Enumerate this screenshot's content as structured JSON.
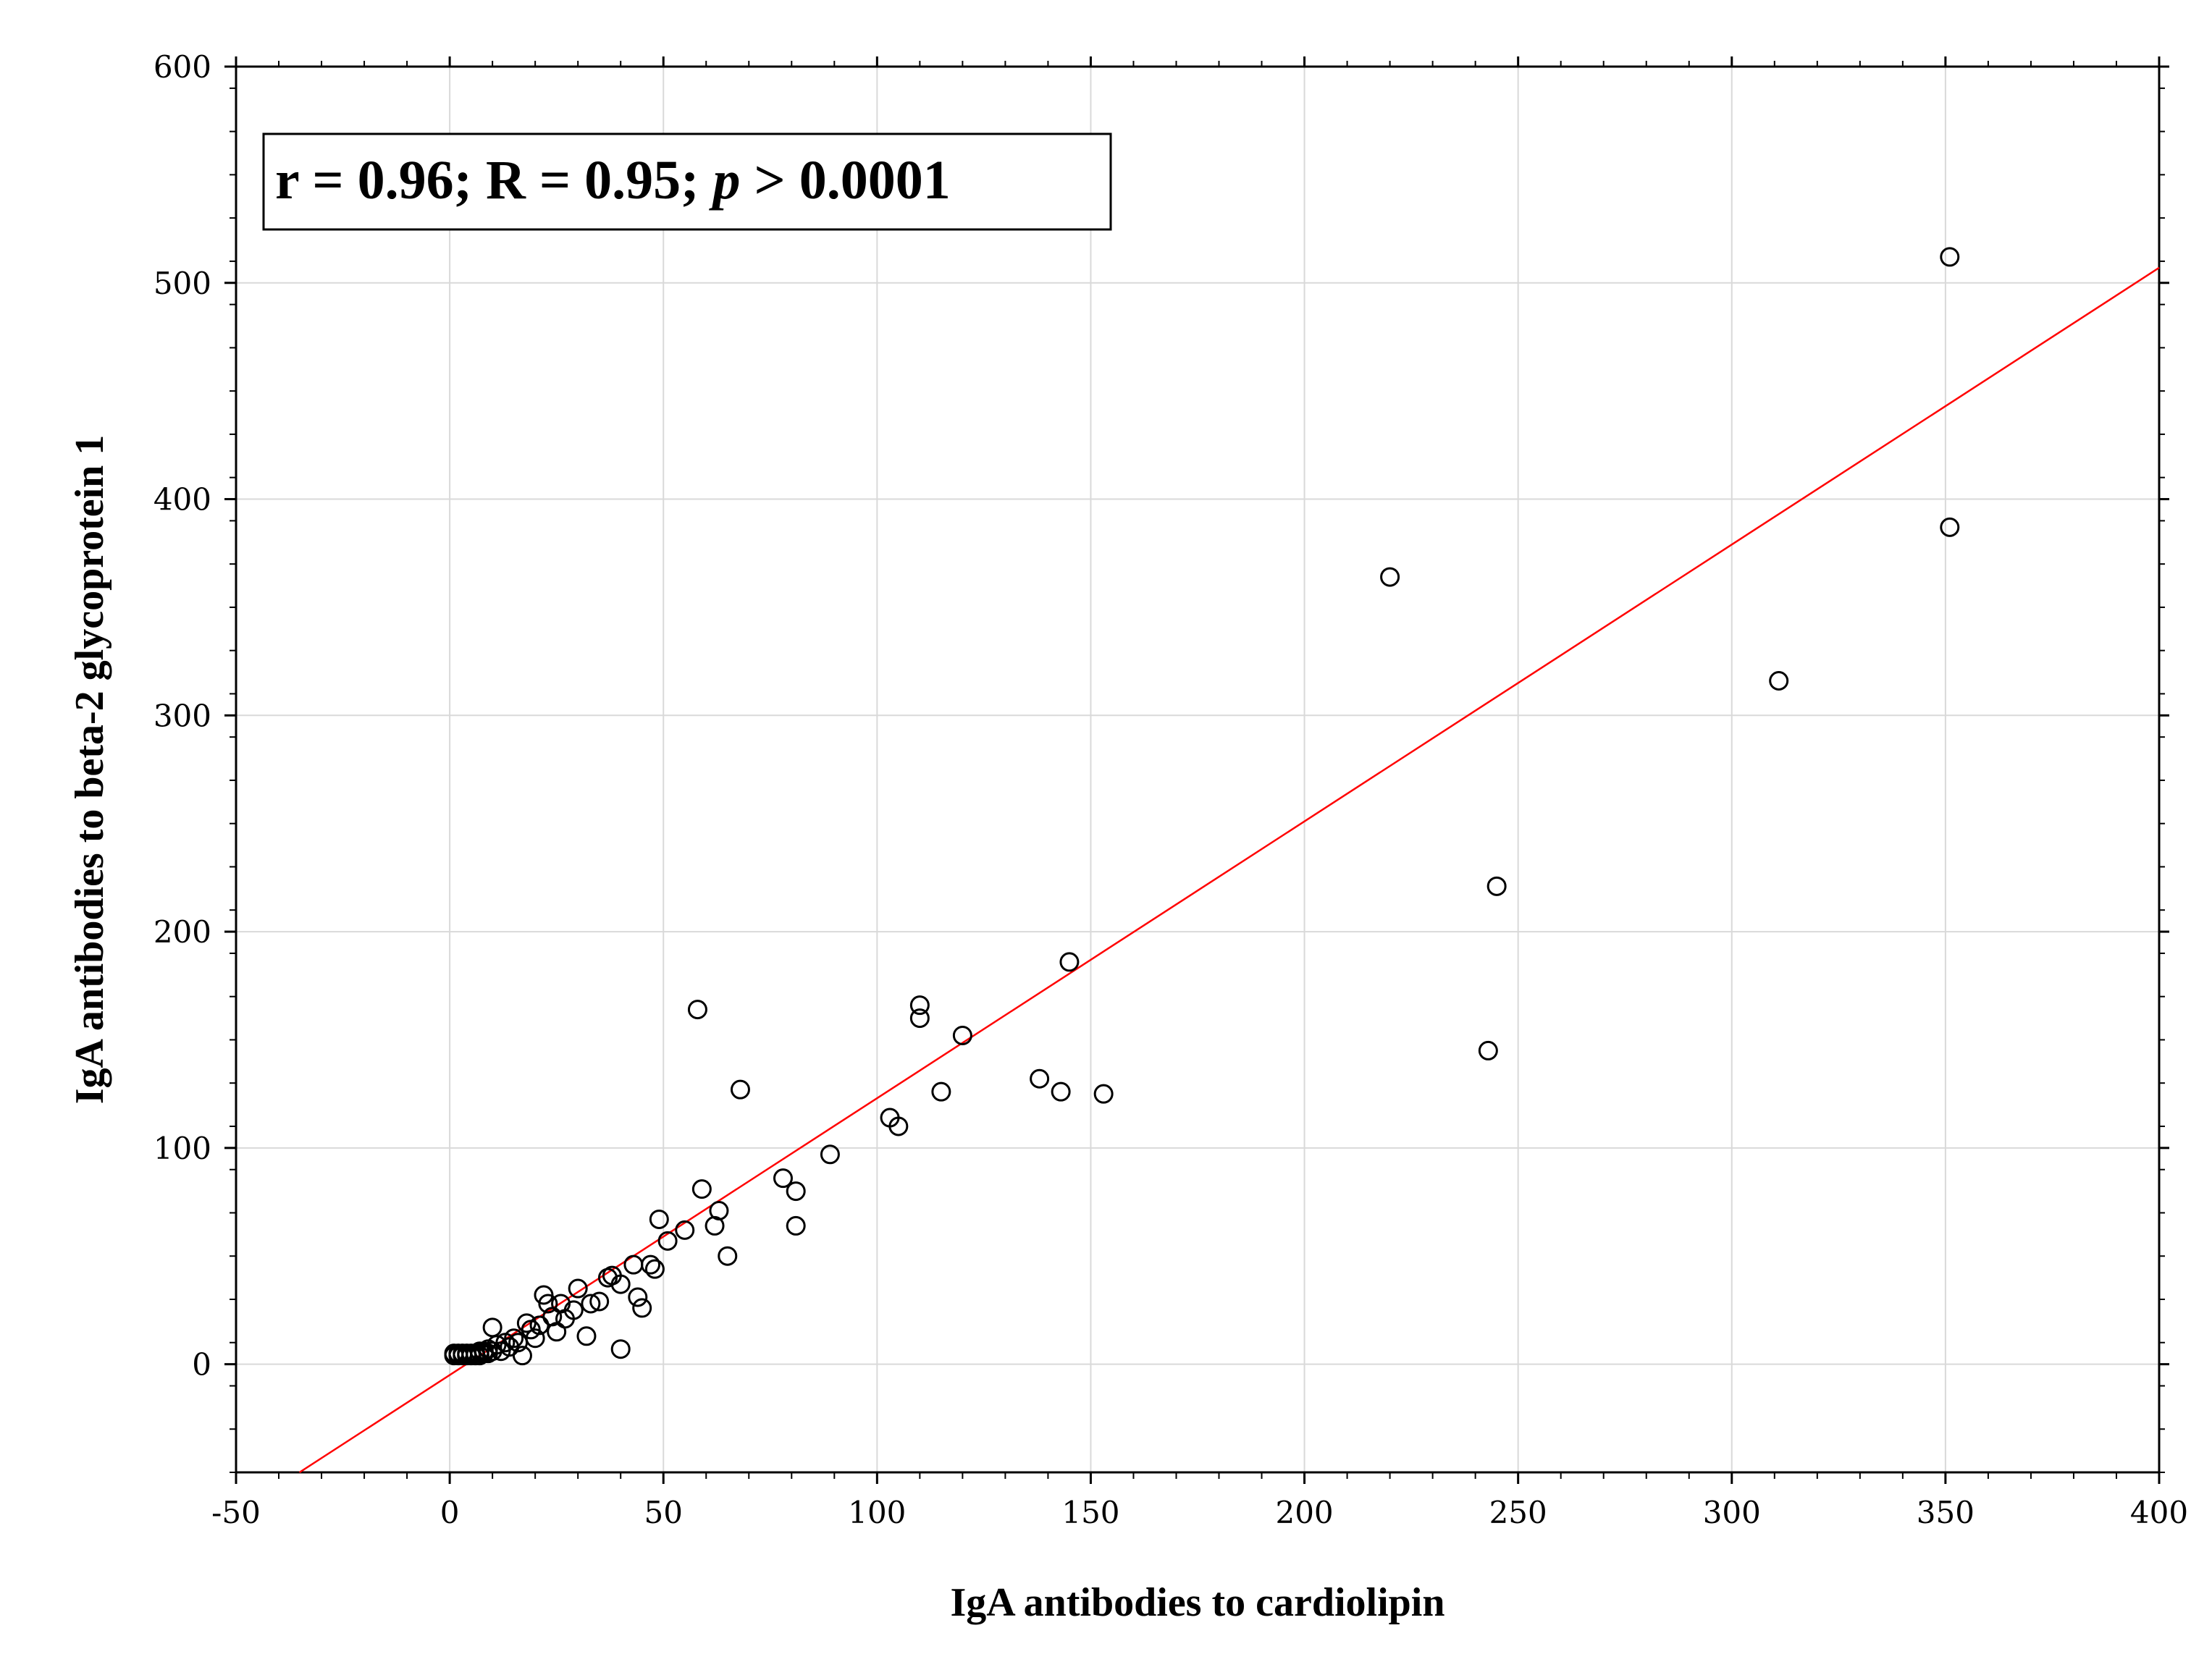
{
  "chart_data": {
    "type": "scatter",
    "title": "",
    "xlabel": "IgA antibodies to cardiolipin",
    "ylabel": "IgA antibodies to beta-2 glycoprotein 1",
    "xlim": [
      -50,
      400
    ],
    "ylim": [
      -50,
      600
    ],
    "x_ticks": [
      -50,
      0,
      50,
      100,
      150,
      200,
      250,
      300,
      350,
      400
    ],
    "y_ticks": [
      0,
      100,
      200,
      300,
      400,
      500,
      600
    ],
    "grid": true,
    "legend": "none",
    "annotation": {
      "part1": "r = 0.96; R = 0.95; ",
      "italic": "p",
      "part2": " > 0.0001"
    },
    "regression_line": {
      "slope": 1.28,
      "intercept": -5,
      "color": "#ff0000"
    },
    "marker_color": "#000000",
    "points": [
      [
        351,
        512
      ],
      [
        351,
        387
      ],
      [
        220,
        364
      ],
      [
        311,
        316
      ],
      [
        245,
        221
      ],
      [
        243,
        145
      ],
      [
        145,
        186
      ],
      [
        153,
        125
      ],
      [
        143,
        126
      ],
      [
        138,
        132
      ],
      [
        120,
        152
      ],
      [
        115,
        126
      ],
      [
        110,
        166
      ],
      [
        110,
        160
      ],
      [
        105,
        110
      ],
      [
        103,
        114
      ],
      [
        89,
        97
      ],
      [
        81,
        80
      ],
      [
        81,
        64
      ],
      [
        78,
        86
      ],
      [
        68,
        127
      ],
      [
        65,
        50
      ],
      [
        63,
        71
      ],
      [
        62,
        64
      ],
      [
        59,
        81
      ],
      [
        58,
        164
      ],
      [
        55,
        62
      ],
      [
        51,
        57
      ],
      [
        49,
        67
      ],
      [
        48,
        44
      ],
      [
        47,
        46
      ],
      [
        45,
        26
      ],
      [
        44,
        31
      ],
      [
        43,
        46
      ],
      [
        40,
        7
      ],
      [
        40,
        37
      ],
      [
        38,
        41
      ],
      [
        37,
        40
      ],
      [
        35,
        29
      ],
      [
        33,
        28
      ],
      [
        32,
        13
      ],
      [
        30,
        35
      ],
      [
        29,
        25
      ],
      [
        27,
        21
      ],
      [
        26,
        28
      ],
      [
        25,
        15
      ],
      [
        24,
        22
      ],
      [
        23,
        28
      ],
      [
        22,
        32
      ],
      [
        21,
        18
      ],
      [
        20,
        12
      ],
      [
        19,
        16
      ],
      [
        18,
        19
      ],
      [
        17,
        4
      ],
      [
        16,
        10
      ],
      [
        15,
        12
      ],
      [
        14,
        8
      ],
      [
        13,
        10
      ],
      [
        12,
        6
      ],
      [
        11,
        9
      ],
      [
        10,
        17
      ],
      [
        10,
        6
      ],
      [
        9,
        7
      ],
      [
        9,
        5
      ],
      [
        8,
        5
      ],
      [
        8,
        6
      ],
      [
        7,
        4
      ],
      [
        7,
        6
      ],
      [
        6,
        5
      ],
      [
        6,
        4
      ],
      [
        5,
        5
      ],
      [
        5,
        4
      ],
      [
        4,
        4
      ],
      [
        4,
        5
      ],
      [
        3,
        4
      ],
      [
        3,
        5
      ],
      [
        2,
        4
      ],
      [
        2,
        5
      ],
      [
        1,
        4
      ],
      [
        1,
        5
      ]
    ]
  }
}
